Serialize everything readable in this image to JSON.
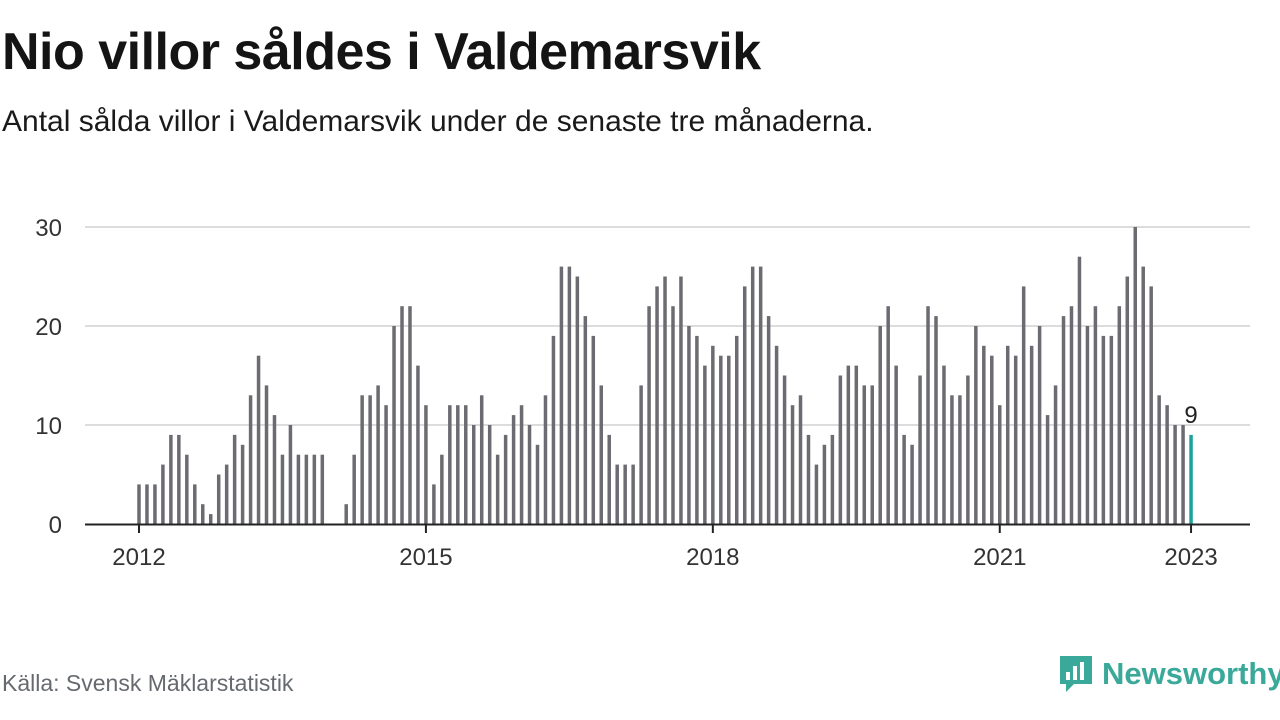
{
  "header": {
    "title": "Nio villor såldes i Valdemarsvik",
    "subtitle": "Antal sålda villor i Valdemarsvik under de senaste tre månaderna."
  },
  "footer": {
    "source": "Källa: Svensk Mäklarstatistik",
    "brand_name": "Newsworthy",
    "brand_icon": "newsworthy-logo-icon"
  },
  "colors": {
    "bar": "#6b6b71",
    "highlight": "#1aa39a",
    "grid": "#dcdcdc",
    "axis": "#222222",
    "brand": "#3aa99a"
  },
  "chart_data": {
    "type": "bar",
    "title": "Nio villor såldes i Valdemarsvik",
    "subtitle": "Antal sålda villor i Valdemarsvik under de senaste tre månaderna.",
    "xlabel": "",
    "ylabel": "",
    "ylim": [
      0,
      30
    ],
    "yticks": [
      0,
      10,
      20,
      30
    ],
    "xticks": [
      "2012",
      "2015",
      "2018",
      "2021",
      "2023"
    ],
    "xtick_month_index": [
      0,
      36,
      72,
      108,
      132
    ],
    "grid": true,
    "start_month": "2012-01",
    "highlight_label": "9",
    "values": [
      4,
      4,
      4,
      6,
      9,
      9,
      7,
      4,
      2,
      1,
      5,
      6,
      9,
      8,
      13,
      17,
      14,
      11,
      7,
      10,
      7,
      7,
      7,
      7,
      null,
      null,
      2,
      7,
      13,
      13,
      14,
      12,
      20,
      22,
      22,
      16,
      12,
      4,
      7,
      12,
      12,
      12,
      10,
      13,
      10,
      7,
      9,
      11,
      12,
      10,
      8,
      13,
      19,
      26,
      26,
      25,
      21,
      19,
      14,
      9,
      6,
      6,
      6,
      14,
      22,
      24,
      25,
      22,
      25,
      20,
      19,
      16,
      18,
      17,
      17,
      19,
      24,
      26,
      26,
      21,
      18,
      15,
      12,
      13,
      9,
      6,
      8,
      9,
      15,
      16,
      16,
      14,
      14,
      20,
      22,
      16,
      9,
      8,
      15,
      22,
      21,
      16,
      13,
      13,
      15,
      20,
      18,
      17,
      12,
      18,
      17,
      24,
      18,
      20,
      11,
      14,
      21,
      22,
      27,
      20,
      22,
      19,
      19,
      22,
      25,
      30,
      26,
      24,
      13,
      12,
      10,
      10,
      9
    ]
  }
}
